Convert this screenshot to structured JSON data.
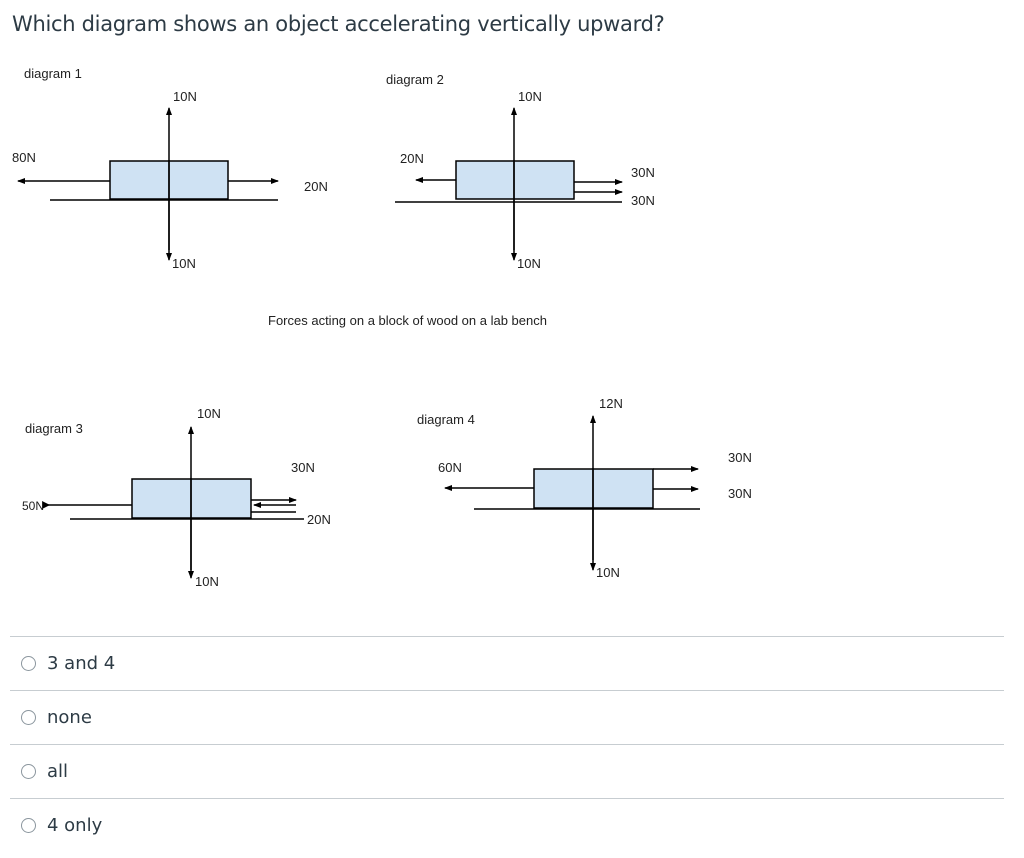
{
  "question": {
    "text": "Which diagram shows an object accelerating vertically upward?"
  },
  "figure": {
    "caption": "Forces acting on a block of wood on a lab bench",
    "diagram1": {
      "title": "diagram 1",
      "up": "10N",
      "down": "10N",
      "left": "80N",
      "right": "20N"
    },
    "diagram2": {
      "title": "diagram 2",
      "up": "10N",
      "down": "10N",
      "left": "20N",
      "right_top": "30N",
      "right_bottom": "30N"
    },
    "diagram3": {
      "title": "diagram 3",
      "up": "10N",
      "down": "10N",
      "left": "50N",
      "right_top": "30N",
      "right_bottom": "20N"
    },
    "diagram4": {
      "title": "diagram 4",
      "up": "12N",
      "down": "10N",
      "left": "60N",
      "right_top": "30N",
      "right_bottom": "30N"
    }
  },
  "answers": [
    {
      "label": "3 and 4"
    },
    {
      "label": "none"
    },
    {
      "label": "all"
    },
    {
      "label": "4 only"
    }
  ],
  "colors": {
    "block_fill": "#cfe2f3",
    "line": "#000000",
    "divider": "#c7cdd1",
    "text": "#2d3b45"
  }
}
